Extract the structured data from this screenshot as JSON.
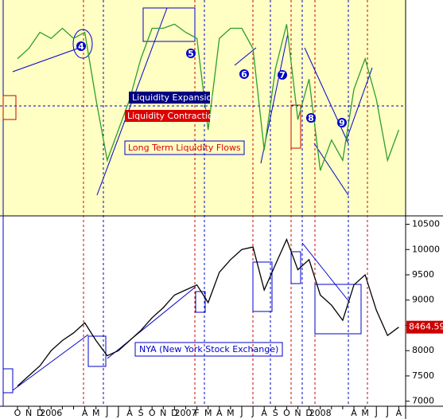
{
  "chart_data": [
    {
      "type": "line",
      "series": [
        {
          "name": null,
          "color": "#2e9e2e",
          "values": [
            75,
            80,
            88,
            85,
            90,
            85,
            88,
            55,
            25,
            40,
            55,
            75,
            90,
            90,
            92,
            88,
            85,
            40,
            85,
            90,
            90,
            80,
            30,
            70,
            92,
            45,
            65,
            20,
            35,
            25,
            60,
            75,
            55,
            25,
            40
          ]
        }
      ],
      "ylim": [
        0,
        100
      ],
      "annotations": [
        "Liquidity Expansion",
        "Liquidity Contraction",
        "Long Term Liquidity Flows",
        "4",
        "5",
        "6",
        "7",
        "8",
        "9"
      ]
    },
    {
      "type": "line",
      "categories": [
        "O",
        "N",
        "D",
        "2006",
        null,
        null,
        "A",
        "M",
        "J",
        "J",
        "A",
        "S",
        "O",
        "N",
        "D",
        "2007",
        "F",
        "M",
        "A",
        "M",
        "J",
        "J",
        "A",
        "S",
        "O",
        "N",
        "D",
        "2008",
        null,
        null,
        "A",
        "M",
        "J",
        "J",
        "A"
      ],
      "series": [
        {
          "name": "NYA (New York Stock Exchange)",
          "color": "#000000",
          "values": [
            7300,
            7500,
            7700,
            8000,
            8200,
            8350,
            8550,
            8200,
            7900,
            8000,
            8200,
            8400,
            8650,
            8850,
            9100,
            9200,
            9300,
            8950,
            9550,
            9800,
            10000,
            10050,
            9200,
            9700,
            10200,
            9600,
            9800,
            9100,
            8900,
            8600,
            9300,
            9500,
            8800,
            8300,
            8464.59
          ]
        }
      ],
      "ylim": [
        6900,
        10650
      ],
      "yticks": [
        7000,
        7500,
        8000,
        8500,
        9000,
        9500,
        10000,
        10500
      ],
      "last_label": "8464.59"
    }
  ]
}
